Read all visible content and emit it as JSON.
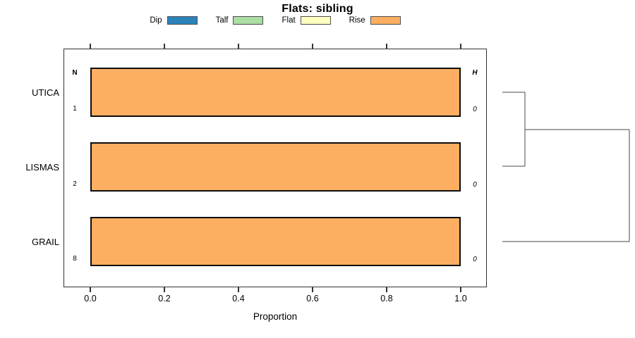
{
  "title": "Flats: sibling",
  "legend": [
    {
      "label": "Dip",
      "color": "#2B83BA"
    },
    {
      "label": "Talf",
      "color": "#ABDDA4"
    },
    {
      "label": "Flat",
      "color": "#FFFFBF"
    },
    {
      "label": "Rise",
      "color": "#FDAE61"
    }
  ],
  "axis": {
    "xlabel": "Proportion",
    "ticks": [
      "0.0",
      "0.2",
      "0.4",
      "0.6",
      "0.8",
      "1.0"
    ]
  },
  "annotations": {
    "n_header": "N",
    "h_header": "H"
  },
  "rows": [
    {
      "category": "UTICA",
      "n": "1",
      "h": "0"
    },
    {
      "category": "LISMAS",
      "n": "2",
      "h": "0"
    },
    {
      "category": "GRAIL",
      "n": "8",
      "h": "0"
    }
  ],
  "chart_data": {
    "type": "bar",
    "orientation": "horizontal",
    "title": "Flats: sibling",
    "xlabel": "Proportion",
    "xlim": [
      0,
      1
    ],
    "xticks": [
      0.0,
      0.2,
      0.4,
      0.6,
      0.8,
      1.0
    ],
    "grid": false,
    "legend_position": "top",
    "categories": [
      "UTICA",
      "LISMAS",
      "GRAIL"
    ],
    "series": [
      {
        "name": "Dip",
        "color": "#2B83BA",
        "values": [
          0,
          0,
          0
        ]
      },
      {
        "name": "Talf",
        "color": "#ABDDA4",
        "values": [
          0,
          0,
          0
        ]
      },
      {
        "name": "Flat",
        "color": "#FFFFBF",
        "values": [
          0,
          0,
          0
        ]
      },
      {
        "name": "Rise",
        "color": "#FDAE61",
        "values": [
          1.0,
          1.0,
          1.0
        ]
      }
    ],
    "n_values": [
      1,
      2,
      8
    ],
    "h_values": [
      0,
      0,
      0
    ],
    "dendrogram": {
      "newick": "((UTICA,LISMAS),GRAIL);",
      "merges": [
        [
          "UTICA",
          "LISMAS"
        ],
        [
          "UTICA+LISMAS",
          "GRAIL"
        ]
      ]
    }
  }
}
